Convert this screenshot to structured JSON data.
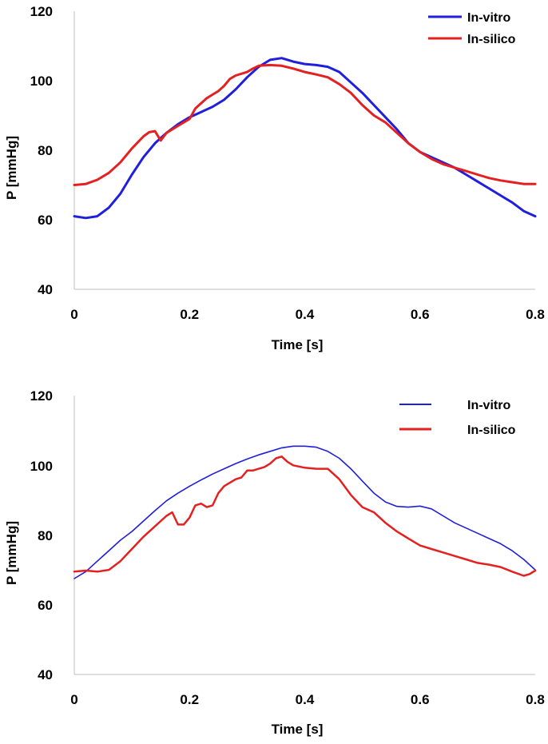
{
  "chart_data": [
    {
      "type": "line",
      "title": "",
      "xlabel": "Time [s]",
      "ylabel": "P [mmHg]",
      "xlim": [
        0,
        0.8
      ],
      "ylim": [
        40,
        120
      ],
      "xticks": [
        0,
        0.2,
        0.4,
        0.6,
        0.8
      ],
      "xtick_labels": [
        "0",
        "0.2",
        "0.4",
        "0.6",
        "0.8"
      ],
      "yticks": [
        40,
        60,
        80,
        100,
        120
      ],
      "ytick_labels": [
        "40",
        "60",
        "80",
        "100",
        "120"
      ],
      "grid": false,
      "legend": "top-right",
      "series": [
        {
          "name": "In-vitro",
          "color": "#1f1fdc",
          "points": [
            [
              0,
              61
            ],
            [
              0.02,
              60.5
            ],
            [
              0.04,
              61
            ],
            [
              0.06,
              63.5
            ],
            [
              0.08,
              67.5
            ],
            [
              0.1,
              73
            ],
            [
              0.12,
              78
            ],
            [
              0.14,
              82
            ],
            [
              0.16,
              85
            ],
            [
              0.18,
              87.5
            ],
            [
              0.2,
              89.5
            ],
            [
              0.22,
              91
            ],
            [
              0.24,
              92.5
            ],
            [
              0.26,
              94.5
            ],
            [
              0.28,
              97.5
            ],
            [
              0.3,
              101
            ],
            [
              0.32,
              104
            ],
            [
              0.34,
              106
            ],
            [
              0.36,
              106.5
            ],
            [
              0.38,
              105.5
            ],
            [
              0.4,
              104.8
            ],
            [
              0.42,
              104.5
            ],
            [
              0.44,
              104
            ],
            [
              0.46,
              102.5
            ],
            [
              0.48,
              99.5
            ],
            [
              0.5,
              96.5
            ],
            [
              0.52,
              93
            ],
            [
              0.54,
              89.5
            ],
            [
              0.56,
              86
            ],
            [
              0.58,
              82
            ],
            [
              0.6,
              79.5
            ],
            [
              0.62,
              78
            ],
            [
              0.64,
              76.5
            ],
            [
              0.66,
              75
            ],
            [
              0.68,
              73
            ],
            [
              0.7,
              71
            ],
            [
              0.72,
              69
            ],
            [
              0.74,
              67
            ],
            [
              0.76,
              65
            ],
            [
              0.78,
              62.5
            ],
            [
              0.8,
              61
            ]
          ]
        },
        {
          "name": "In-silico",
          "color": "#e52020",
          "points": [
            [
              0,
              70
            ],
            [
              0.02,
              70.3
            ],
            [
              0.04,
              71.5
            ],
            [
              0.06,
              73.5
            ],
            [
              0.08,
              76.5
            ],
            [
              0.1,
              80.5
            ],
            [
              0.12,
              84
            ],
            [
              0.13,
              85.2
            ],
            [
              0.14,
              85.5
            ],
            [
              0.15,
              82.8
            ],
            [
              0.16,
              85
            ],
            [
              0.18,
              87
            ],
            [
              0.2,
              89
            ],
            [
              0.21,
              92
            ],
            [
              0.22,
              93.5
            ],
            [
              0.23,
              95
            ],
            [
              0.24,
              96
            ],
            [
              0.25,
              97
            ],
            [
              0.26,
              98.5
            ],
            [
              0.27,
              100.5
            ],
            [
              0.28,
              101.5
            ],
            [
              0.3,
              102.5
            ],
            [
              0.31,
              103.5
            ],
            [
              0.32,
              104.3
            ],
            [
              0.34,
              104.5
            ],
            [
              0.36,
              104.3
            ],
            [
              0.38,
              103.5
            ],
            [
              0.4,
              102.5
            ],
            [
              0.42,
              101.8
            ],
            [
              0.44,
              101
            ],
            [
              0.46,
              99
            ],
            [
              0.48,
              96.5
            ],
            [
              0.5,
              93
            ],
            [
              0.52,
              90
            ],
            [
              0.54,
              88
            ],
            [
              0.56,
              85
            ],
            [
              0.58,
              82
            ],
            [
              0.6,
              79.5
            ],
            [
              0.62,
              77.5
            ],
            [
              0.64,
              76
            ],
            [
              0.66,
              75
            ],
            [
              0.68,
              74
            ],
            [
              0.7,
              73
            ],
            [
              0.72,
              72
            ],
            [
              0.74,
              71.3
            ],
            [
              0.76,
              70.8
            ],
            [
              0.78,
              70.3
            ],
            [
              0.8,
              70.3
            ]
          ]
        }
      ]
    },
    {
      "type": "line",
      "title": "",
      "xlabel": "Time [s]",
      "ylabel": "P [mmHg]",
      "xlim": [
        0,
        0.8
      ],
      "ylim": [
        40,
        120
      ],
      "xticks": [
        0,
        0.2,
        0.4,
        0.6,
        0.8
      ],
      "xtick_labels": [
        "0",
        "0.2",
        "0.4",
        "0.6",
        "0.8"
      ],
      "yticks": [
        40,
        60,
        80,
        100,
        120
      ],
      "ytick_labels": [
        "40",
        "60",
        "80",
        "100",
        "120"
      ],
      "grid": false,
      "legend": "top-right",
      "series": [
        {
          "name": "In-vitro",
          "color": "#1f1fdc",
          "points": [
            [
              0,
              67.5
            ],
            [
              0.02,
              69.5
            ],
            [
              0.04,
              72.5
            ],
            [
              0.06,
              75.5
            ],
            [
              0.08,
              78.5
            ],
            [
              0.1,
              81
            ],
            [
              0.12,
              84
            ],
            [
              0.14,
              87
            ],
            [
              0.16,
              89.8
            ],
            [
              0.18,
              92
            ],
            [
              0.2,
              94
            ],
            [
              0.22,
              95.8
            ],
            [
              0.24,
              97.5
            ],
            [
              0.26,
              99
            ],
            [
              0.28,
              100.5
            ],
            [
              0.3,
              101.8
            ],
            [
              0.32,
              103
            ],
            [
              0.34,
              104
            ],
            [
              0.36,
              105
            ],
            [
              0.38,
              105.5
            ],
            [
              0.4,
              105.5
            ],
            [
              0.42,
              105.2
            ],
            [
              0.44,
              104
            ],
            [
              0.46,
              102
            ],
            [
              0.48,
              99
            ],
            [
              0.5,
              95.5
            ],
            [
              0.52,
              92
            ],
            [
              0.54,
              89.5
            ],
            [
              0.56,
              88.2
            ],
            [
              0.58,
              88
            ],
            [
              0.6,
              88.3
            ],
            [
              0.62,
              87.5
            ],
            [
              0.64,
              85.5
            ],
            [
              0.66,
              83.5
            ],
            [
              0.68,
              82
            ],
            [
              0.7,
              80.5
            ],
            [
              0.72,
              79
            ],
            [
              0.74,
              77.5
            ],
            [
              0.76,
              75.5
            ],
            [
              0.78,
              73
            ],
            [
              0.8,
              70
            ]
          ]
        },
        {
          "name": "In-silico",
          "color": "#e52020",
          "points": [
            [
              0,
              69.5
            ],
            [
              0.02,
              69.8
            ],
            [
              0.04,
              69.5
            ],
            [
              0.06,
              70
            ],
            [
              0.08,
              72.5
            ],
            [
              0.1,
              76
            ],
            [
              0.12,
              79.5
            ],
            [
              0.14,
              82.5
            ],
            [
              0.16,
              85.5
            ],
            [
              0.17,
              86.5
            ],
            [
              0.18,
              83
            ],
            [
              0.19,
              83
            ],
            [
              0.2,
              85
            ],
            [
              0.21,
              88.5
            ],
            [
              0.22,
              89
            ],
            [
              0.23,
              88
            ],
            [
              0.24,
              88.5
            ],
            [
              0.25,
              92
            ],
            [
              0.26,
              94
            ],
            [
              0.27,
              95
            ],
            [
              0.28,
              96
            ],
            [
              0.29,
              96.5
            ],
            [
              0.3,
              98.5
            ],
            [
              0.31,
              98.5
            ],
            [
              0.32,
              99
            ],
            [
              0.33,
              99.5
            ],
            [
              0.34,
              100.5
            ],
            [
              0.35,
              102
            ],
            [
              0.36,
              102.5
            ],
            [
              0.37,
              101
            ],
            [
              0.38,
              100
            ],
            [
              0.4,
              99.3
            ],
            [
              0.42,
              99
            ],
            [
              0.44,
              99
            ],
            [
              0.46,
              96
            ],
            [
              0.48,
              91.5
            ],
            [
              0.5,
              88
            ],
            [
              0.52,
              86.5
            ],
            [
              0.54,
              83.5
            ],
            [
              0.56,
              81
            ],
            [
              0.58,
              79
            ],
            [
              0.6,
              77
            ],
            [
              0.62,
              76
            ],
            [
              0.64,
              75
            ],
            [
              0.66,
              74
            ],
            [
              0.68,
              73
            ],
            [
              0.7,
              72
            ],
            [
              0.72,
              71.5
            ],
            [
              0.74,
              70.8
            ],
            [
              0.76,
              69.5
            ],
            [
              0.78,
              68.3
            ],
            [
              0.79,
              68.8
            ],
            [
              0.8,
              69.8
            ]
          ]
        }
      ]
    }
  ]
}
